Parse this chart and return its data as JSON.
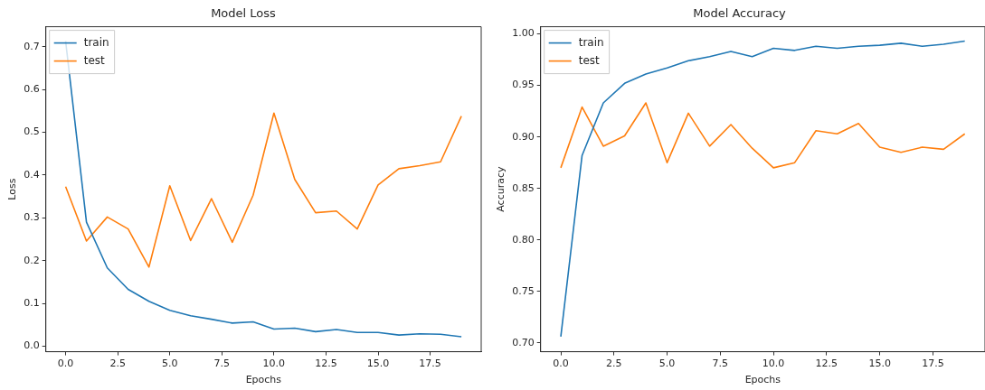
{
  "chart_data": [
    {
      "type": "line",
      "title": "Model Loss",
      "xlabel": "Epochs",
      "ylabel": "Loss",
      "x": [
        0,
        1,
        2,
        3,
        4,
        5,
        6,
        7,
        8,
        9,
        10,
        11,
        12,
        13,
        14,
        15,
        16,
        17,
        18,
        19
      ],
      "series": [
        {
          "name": "train",
          "color": "#1f77b4",
          "values": [
            0.713,
            0.29,
            0.183,
            0.133,
            0.105,
            0.084,
            0.071,
            0.063,
            0.054,
            0.057,
            0.04,
            0.042,
            0.034,
            0.039,
            0.032,
            0.032,
            0.026,
            0.029,
            0.028,
            0.022
          ]
        },
        {
          "name": "test",
          "color": "#ff7f0e",
          "values": [
            0.373,
            0.246,
            0.302,
            0.274,
            0.185,
            0.375,
            0.247,
            0.345,
            0.243,
            0.353,
            0.545,
            0.39,
            0.312,
            0.316,
            0.274,
            0.377,
            0.415,
            0.422,
            0.431,
            0.538
          ]
        }
      ],
      "xlim": [
        -0.95,
        19.95
      ],
      "xticks": [
        {
          "value": 0,
          "label": "0.0"
        },
        {
          "value": 2.5,
          "label": "2.5"
        },
        {
          "value": 5,
          "label": "5.0"
        },
        {
          "value": 7.5,
          "label": "7.5"
        },
        {
          "value": 10,
          "label": "10.0"
        },
        {
          "value": 12.5,
          "label": "12.5"
        },
        {
          "value": 15,
          "label": "15.0"
        },
        {
          "value": 17.5,
          "label": "17.5"
        }
      ],
      "ylim": [
        -0.013,
        0.747
      ],
      "yticks": [
        {
          "value": 0,
          "label": "0.0"
        },
        0.1,
        0.2,
        0.3,
        0.4,
        0.5,
        0.6,
        0.7
      ],
      "legend": "top left",
      "grid": false,
      "marker": "none",
      "line_style": "solid"
    },
    {
      "type": "line",
      "title": "Model Accuracy",
      "xlabel": "Epochs",
      "ylabel": "Accuracy",
      "x": [
        0,
        1,
        2,
        3,
        4,
        5,
        6,
        7,
        8,
        9,
        10,
        11,
        12,
        13,
        14,
        15,
        16,
        17,
        18,
        19
      ],
      "series": [
        {
          "name": "train",
          "color": "#1f77b4",
          "values": [
            0.706,
            0.882,
            0.933,
            0.952,
            0.961,
            0.967,
            0.974,
            0.978,
            0.983,
            0.978,
            0.986,
            0.984,
            0.988,
            0.986,
            0.988,
            0.989,
            0.991,
            0.988,
            0.99,
            0.993
          ]
        },
        {
          "name": "test",
          "color": "#ff7f0e",
          "values": [
            0.87,
            0.929,
            0.891,
            0.901,
            0.933,
            0.875,
            0.923,
            0.891,
            0.912,
            0.889,
            0.87,
            0.875,
            0.906,
            0.903,
            0.913,
            0.89,
            0.885,
            0.89,
            0.888,
            0.903
          ]
        }
      ],
      "xlim": [
        -0.95,
        19.95
      ],
      "xticks": [
        {
          "value": 0,
          "label": "0.0"
        },
        {
          "value": 2.5,
          "label": "2.5"
        },
        {
          "value": 5,
          "label": "5.0"
        },
        {
          "value": 7.5,
          "label": "7.5"
        },
        {
          "value": 10,
          "label": "10.0"
        },
        {
          "value": 12.5,
          "label": "12.5"
        },
        {
          "value": 15,
          "label": "15.0"
        },
        {
          "value": 17.5,
          "label": "17.5"
        }
      ],
      "ylim": [
        0.6914,
        1.007
      ],
      "yticks": [
        {
          "value": 0.7,
          "label": "0.70"
        },
        {
          "value": 0.75,
          "label": "0.75"
        },
        {
          "value": 0.8,
          "label": "0.80"
        },
        {
          "value": 0.85,
          "label": "0.85"
        },
        {
          "value": 0.9,
          "label": "0.90"
        },
        {
          "value": 0.95,
          "label": "0.95"
        },
        {
          "value": 1,
          "label": "1.00"
        }
      ],
      "legend": "top left",
      "grid": false,
      "marker": "none",
      "line_style": "solid"
    }
  ]
}
